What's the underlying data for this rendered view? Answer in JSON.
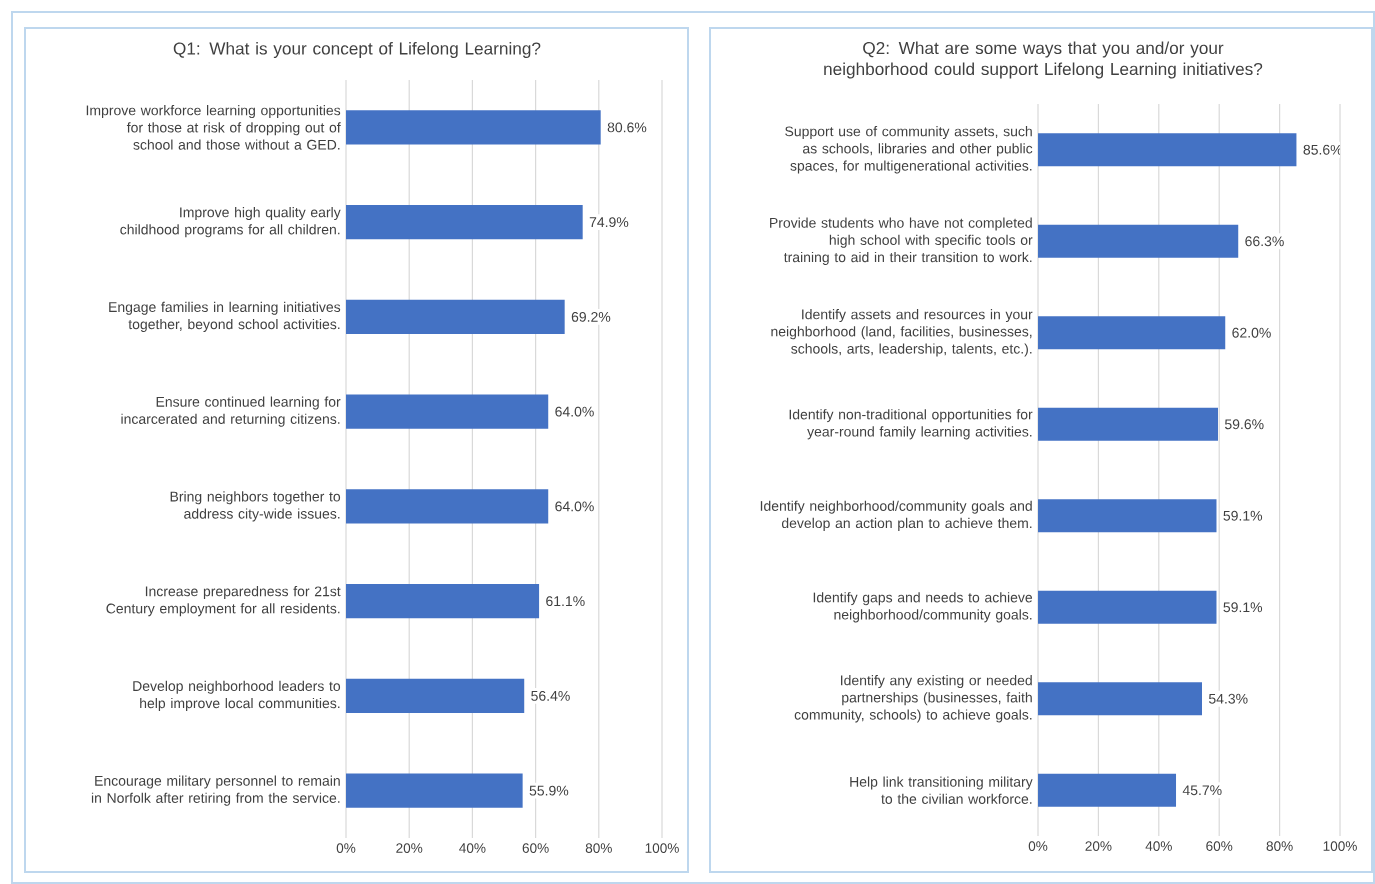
{
  "chart_data": [
    {
      "type": "bar",
      "orientation": "horizontal",
      "title": "Q1: What is your concept of Lifelong Learning?",
      "categories": [
        "Improve workforce learning opportunities for those at risk of dropping out of school and those without a GED.",
        "Improve high quality early childhood programs for all children.",
        "Engage families in learning initiatives together, beyond school activities.",
        "Ensure continued learning for incarcerated and returning citizens.",
        "Bring neighbors together to address city-wide issues.",
        "Increase preparedness for 21st Century employment for all residents.",
        "Develop neighborhood leaders to help improve local communities.",
        "Encourage military personnel to remain in Norfolk after retiring from the service."
      ],
      "values": [
        80.6,
        74.9,
        69.2,
        64.0,
        64.0,
        61.1,
        56.4,
        55.9
      ],
      "value_labels": [
        "80.6%",
        "74.9%",
        "69.2%",
        "64.0%",
        "64.0%",
        "61.1%",
        "56.4%",
        "55.9%"
      ],
      "color": "#4472c4",
      "xlim": [
        0,
        100
      ],
      "xticks": [
        {
          "value": 0,
          "label": "0%"
        },
        {
          "value": 20,
          "label": "20%"
        },
        {
          "value": 40,
          "label": "40%"
        },
        {
          "value": 60,
          "label": "60%"
        },
        {
          "value": 80,
          "label": "80%"
        },
        {
          "value": 100,
          "label": "100%"
        }
      ],
      "grid": "x"
    },
    {
      "type": "bar",
      "orientation": "horizontal",
      "title": "Q2: What are some ways that you and/or your neighborhood could support Lifelong Learning initiatives?",
      "categories": [
        "Support use of community assets, such as schools, libraries and other public spaces, for multigenerational activities.",
        "Provide students who have not completed high school with specific tools or training to aid in their transition to work.",
        "Identify assets and resources in your neighborhood (land, facilities, businesses, schools, arts, leadership, talents, etc.).",
        "Identify non-traditional opportunities for year-round family learning activities.",
        "Identify neighborhood/community goals and develop an action plan to achieve them.",
        "Identify gaps and needs to achieve neighborhood/community goals.",
        "Identify any existing or needed partnerships (businesses, faith community, schools) to achieve goals.",
        "Help link transitioning military to the civilian workforce."
      ],
      "values": [
        85.6,
        66.3,
        62.0,
        59.6,
        59.1,
        59.1,
        54.3,
        45.7
      ],
      "value_labels": [
        "85.6%",
        "66.3%",
        "62.0%",
        "59.6%",
        "59.1%",
        "59.1%",
        "54.3%",
        "45.7%"
      ],
      "color": "#4472c4",
      "xlim": [
        0,
        100
      ],
      "xticks": [
        {
          "value": 0,
          "label": "0%"
        },
        {
          "value": 20,
          "label": "20%"
        },
        {
          "value": 40,
          "label": "40%"
        },
        {
          "value": 60,
          "label": "60%"
        },
        {
          "value": 80,
          "label": "80%"
        },
        {
          "value": 100,
          "label": "100%"
        }
      ],
      "grid": "x"
    }
  ]
}
